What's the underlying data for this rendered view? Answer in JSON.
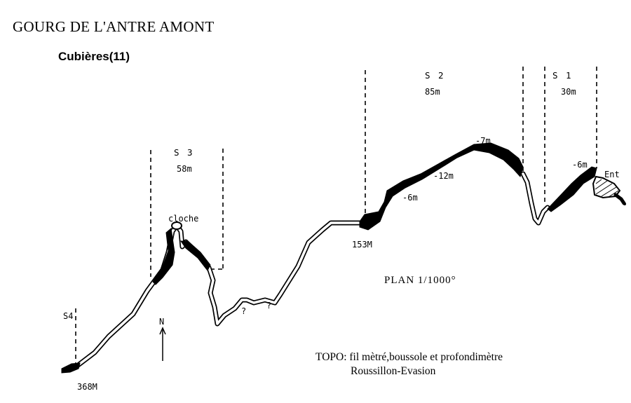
{
  "title": "GOURG DE L'ANTRE AMONT",
  "subtitle": "Cubières(11)",
  "sumps": [
    {
      "name": "S 1",
      "length": "30m"
    },
    {
      "name": "S 2",
      "length": "85m"
    },
    {
      "name": "S 3",
      "length": "58m"
    },
    {
      "name": "S4"
    }
  ],
  "depths": [
    "-6m",
    "-7m",
    "-12m",
    "-6m"
  ],
  "labels": {
    "entrance": "Ent",
    "cloche": "cloche",
    "distance_153": "153M",
    "distance_368": "368M",
    "unknown_1": "?",
    "unknown_2": "?",
    "north": "N"
  },
  "scale": "PLAN   1/1000°",
  "credits": {
    "line1": "TOPO: fil mètré,boussole et profondimètre",
    "line2": "Roussillon-Evasion"
  }
}
